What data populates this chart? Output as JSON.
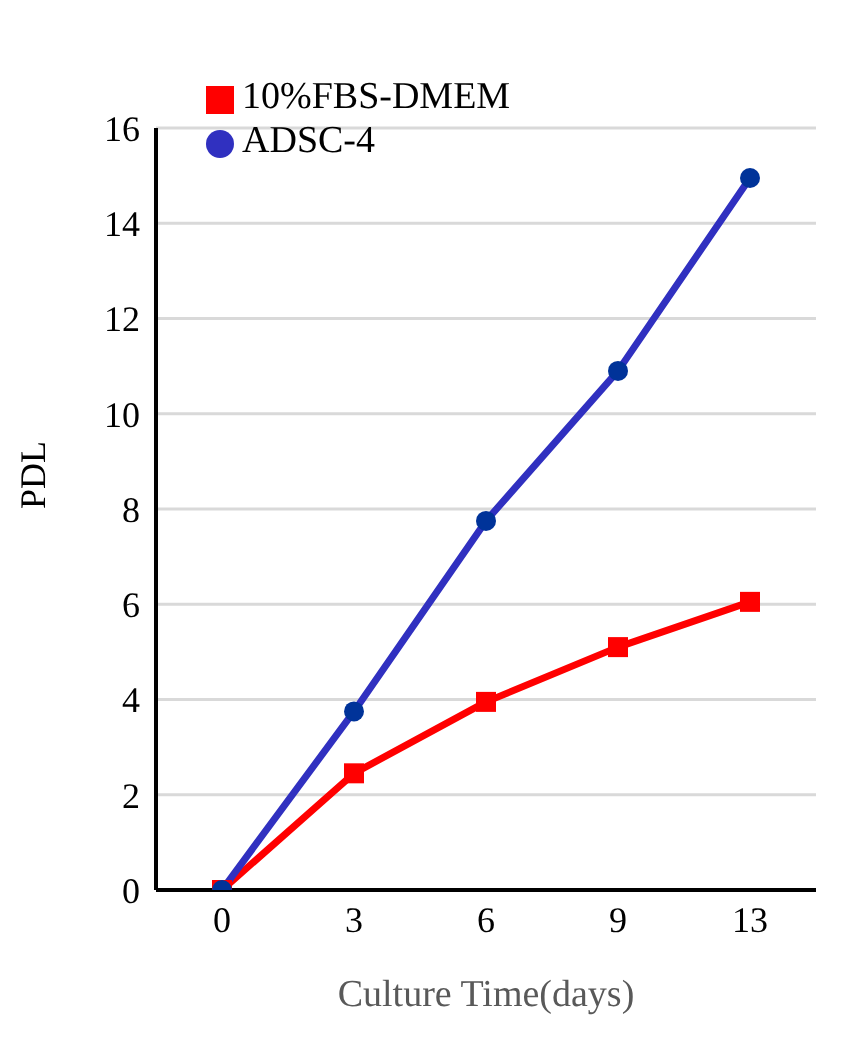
{
  "chart_data": {
    "type": "line",
    "xlabel": "Culture Time(days)",
    "ylabel": "PDL",
    "categories": [
      "0",
      "3",
      "6",
      "9",
      "13"
    ],
    "series": [
      {
        "name": "10%FBS-DMEM",
        "color": "#ff0000",
        "marker": "square",
        "values": [
          0,
          2.45,
          3.95,
          5.1,
          6.05
        ]
      },
      {
        "name": "ADSC-4",
        "color": "#3030c0",
        "marker": "circle",
        "values": [
          0,
          3.75,
          7.75,
          10.9,
          14.95
        ]
      }
    ],
    "ylim": [
      0,
      16
    ],
    "yticks": [
      0,
      2,
      4,
      6,
      8,
      10,
      12,
      14,
      16
    ],
    "grid": "y",
    "legend": "top left",
    "line_style": "solid"
  }
}
